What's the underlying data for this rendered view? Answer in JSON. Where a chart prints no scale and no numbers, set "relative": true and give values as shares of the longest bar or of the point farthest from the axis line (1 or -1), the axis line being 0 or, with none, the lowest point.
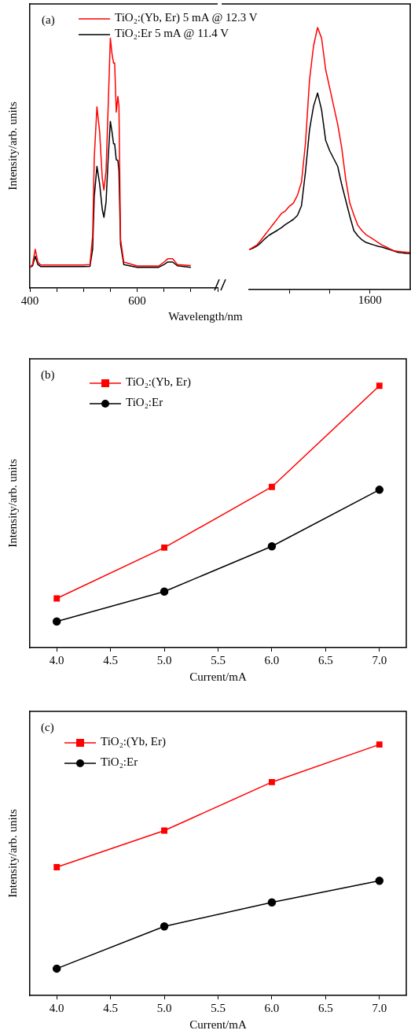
{
  "chart_data": [
    {
      "type": "line",
      "title": "(a)",
      "ylabel": "Intensity/arb. units",
      "xlabel": "Wavelength/nm",
      "relative": true,
      "legend": "top",
      "xlim": [
        400,
        750
      ],
      "xticks": [
        400,
        {
          "value": 450,
          "label": null
        },
        {
          "value": 500,
          "label": null
        },
        {
          "value": 550,
          "label": null
        },
        600,
        {
          "value": 650,
          "label": null
        },
        {
          "value": 700,
          "label": null
        },
        {
          "value": 750,
          "label": null
        }
      ],
      "series": [
        {
          "name": "TiO₂:(Yb, Er) 5 mA @ 12.3 V",
          "color": "#ff0000",
          "x": [
            400,
            405,
            410,
            415,
            420,
            450,
            500,
            512,
            517,
            520,
            525,
            530,
            535,
            538,
            542,
            546,
            550,
            553,
            556,
            558,
            561,
            564,
            566,
            569,
            575,
            600,
            640,
            650,
            657,
            666,
            675,
            700
          ],
          "values": [
            0.083,
            0.094,
            0.155,
            0.104,
            0.092,
            0.092,
            0.092,
            0.094,
            0.209,
            0.521,
            0.725,
            0.626,
            0.438,
            0.392,
            0.469,
            0.73,
            1,
            0.938,
            0.9,
            0.901,
            0.704,
            0.767,
            0.73,
            0.196,
            0.104,
            0.088,
            0.088,
            0.104,
            0.117,
            0.117,
            0.094,
            0.09
          ]
        },
        {
          "name": "TiO₂:Er 5 mA @ 11.4 V",
          "color": "#000000",
          "x": [
            400,
            405,
            410,
            415,
            420,
            450,
            500,
            512,
            517,
            520,
            525,
            530,
            535,
            538,
            542,
            546,
            550,
            553,
            556,
            558,
            561,
            564,
            566,
            569,
            575,
            600,
            640,
            650,
            657,
            666,
            675,
            700
          ],
          "values": [
            0.083,
            0.089,
            0.127,
            0.094,
            0.086,
            0.086,
            0.086,
            0.087,
            0.156,
            0.365,
            0.487,
            0.417,
            0.313,
            0.283,
            0.344,
            0.521,
            0.667,
            0.626,
            0.577,
            0.577,
            0.513,
            0.511,
            0.469,
            0.175,
            0.094,
            0.083,
            0.083,
            0.094,
            0.104,
            0.104,
            0.089,
            0.083
          ]
        }
      ]
    },
    {
      "type": "line",
      "relative": true,
      "annotations": [
        "1600"
      ],
      "categories": [
        null,
        null,
        null,
        null,
        null,
        null,
        null,
        null,
        null,
        null,
        null,
        null,
        null,
        null,
        null,
        null,
        null,
        null,
        null,
        null,
        null,
        null,
        null,
        null,
        null,
        null,
        null,
        null,
        null,
        null,
        null,
        null,
        null,
        null,
        null,
        null,
        null,
        null,
        null,
        null,
        null
      ],
      "series": [
        {
          "color": "#ff0000",
          "values": [
            0.152,
            0.162,
            0.171,
            0.19,
            0.21,
            0.23,
            0.25,
            0.27,
            0.29,
            0.3,
            0.318,
            0.33,
            0.36,
            0.41,
            0.56,
            0.8,
            0.93,
            1,
            0.959,
            0.84,
            0.77,
            0.7,
            0.63,
            0.54,
            0.42,
            0.33,
            0.285,
            0.245,
            0.225,
            0.21,
            0.2,
            0.19,
            0.18,
            0.17,
            0.163,
            0.155,
            0.148,
            0.146,
            0.144,
            0.143,
            0.142
          ]
        },
        {
          "color": "#000000",
          "values": [
            0.152,
            0.158,
            0.167,
            0.18,
            0.195,
            0.208,
            0.217,
            0.226,
            0.236,
            0.248,
            0.258,
            0.268,
            0.283,
            0.32,
            0.45,
            0.61,
            0.7,
            0.75,
            0.685,
            0.57,
            0.53,
            0.5,
            0.47,
            0.4,
            0.34,
            0.28,
            0.225,
            0.205,
            0.19,
            0.18,
            0.175,
            0.17,
            0.165,
            0.162,
            0.157,
            0.152,
            0.147,
            0.142,
            0.14,
            0.138,
            0.137
          ]
        }
      ]
    },
    {
      "type": "line",
      "title": "(b)",
      "ylabel": "Intensity/arb. units",
      "xlabel": "Current/mA",
      "relative": true,
      "legend": "top left",
      "xlim": [
        3.75,
        7.25
      ],
      "xticks": [
        {
          "value": 4,
          "label": "4.0"
        },
        4.5,
        {
          "value": 5,
          "label": "5.0"
        },
        5.5,
        {
          "value": 6,
          "label": "6.0"
        },
        6.5,
        {
          "value": 7,
          "label": "7.0"
        }
      ],
      "series": [
        {
          "name": "TiO₂:(Yb, Er)",
          "color": "#ff0000",
          "marker": "square",
          "x": [
            4,
            5,
            6,
            7
          ],
          "values": [
            0.188,
            0.382,
            0.614,
            1
          ]
        },
        {
          "name": "TiO₂:Er",
          "color": "#000000",
          "marker": "circle",
          "x": [
            4,
            5,
            6,
            7
          ],
          "values": [
            0.1,
            0.214,
            0.387,
            0.603
          ]
        }
      ]
    },
    {
      "type": "line",
      "title": "(c)",
      "ylabel": "Intensity/arb. units",
      "xlabel": "Current/mA",
      "relative": true,
      "legend": "top left",
      "xlim": [
        3.75,
        7.25
      ],
      "xticks": [
        {
          "value": 4,
          "label": "4.0"
        },
        4.5,
        {
          "value": 5,
          "label": "5.0"
        },
        5.5,
        {
          "value": 6,
          "label": "6.0"
        },
        6.5,
        {
          "value": 7,
          "label": "7.0"
        }
      ],
      "series": [
        {
          "name": "TiO₂:(Yb, Er)",
          "color": "#ff0000",
          "marker": "square",
          "x": [
            4,
            5,
            6,
            7
          ],
          "values": [
            0.511,
            0.657,
            0.85,
            1
          ]
        },
        {
          "name": "TiO₂:Er",
          "color": "#000000",
          "marker": "circle",
          "x": [
            4,
            5,
            6,
            7
          ],
          "values": [
            0.107,
            0.275,
            0.371,
            0.457
          ]
        }
      ]
    }
  ]
}
